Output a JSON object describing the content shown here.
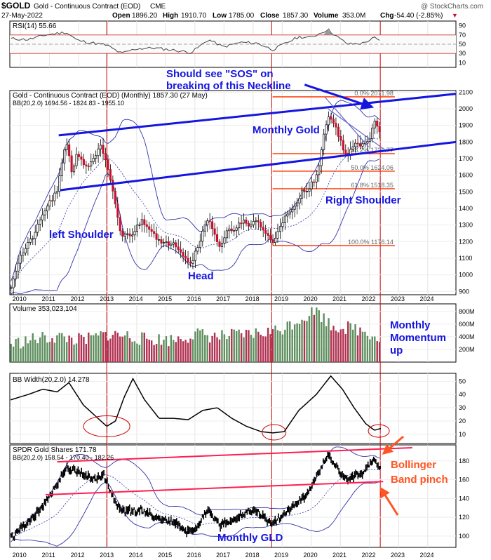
{
  "header": {
    "ticker": "$GOLD",
    "name": "Gold - Continuous Contract (EOD)",
    "exchange": "CME",
    "credit": "@ StockCharts.com",
    "date": "27-May-2022",
    "open_label": "Open",
    "open": "1896.20",
    "high_label": "High",
    "high": "1910.70",
    "low_label": "Low",
    "low": "1785.00",
    "close_label": "Close",
    "close": "1857.30",
    "volume_label": "Volume",
    "volume": "353.0M",
    "chg_label": "Chg",
    "chg": "-54.40 (-2.85%)",
    "chg_arrow": "▼"
  },
  "colors": {
    "up": "#2e8b57",
    "down": "#c8102e",
    "vol_up": "#5f8f5f",
    "vol_down": "#b03050",
    "blue": "#1515e0",
    "fib": "#ff3300",
    "vline": "#cc0000",
    "pink_line": "#ff1e50",
    "orange": "#ff5522"
  },
  "x_axis": {
    "years": [
      "2010",
      "2011",
      "2012",
      "2013",
      "2014",
      "2015",
      "2016",
      "2017",
      "2018",
      "2019",
      "2020",
      "2021",
      "2022",
      "2023",
      "2024"
    ]
  },
  "panels": {
    "rsi": {
      "legend": "RSI(14) 55.66",
      "ticks": [
        "90",
        "70",
        "50",
        "30",
        "10"
      ]
    },
    "price": {
      "legend_main": "Gold - Continuous Contract (EOD) (Monthly) 1857.30 (27 May)",
      "legend_bb": "BB(20,2.0) 1694.56 - 1824.83 - 1955.10",
      "ticks": [
        "2100",
        "2000",
        "1900",
        "1800",
        "1700",
        "1600",
        "1500",
        "1400",
        "1300",
        "1200",
        "1100",
        "1000",
        "900"
      ],
      "fib_labels": [
        "0.0% 2071.98",
        "38.2% 1729.77",
        "50.0% 1624.06",
        "61.8% 1518.35",
        "100.0% 1176.14"
      ],
      "annotations": {
        "sos": "Should see \"SOS\" on",
        "neckline": "breaking of this Neckline",
        "monthly_gold": "Monthly Gold",
        "left_shoulder": "left Shoulder",
        "head": "Head",
        "right_shoulder": "Right Shoulder"
      }
    },
    "volume": {
      "legend": "Volume 353,023,104",
      "ticks": [
        "800M",
        "600M",
        "400M",
        "200M"
      ],
      "annotation_lines": [
        "Monthly",
        "Momentum",
        "up"
      ]
    },
    "bbwidth": {
      "legend": "BB Width(20,2.0) 14.278",
      "ticks": [
        "50",
        "40",
        "30",
        "20",
        "10"
      ]
    },
    "gld": {
      "legend_main": "SPDR Gold Shares 171.78",
      "legend_bb": "BB(20,2.0) 158.54 - 170.40 - 182.26",
      "ticks": [
        "180",
        "160",
        "140",
        "120",
        "100"
      ],
      "annotations": {
        "bollinger": "Bollinger",
        "band_pinch": "Band pinch",
        "monthly_gld": "Monthly GLD"
      }
    }
  },
  "chart_data": {
    "type": "candlestick",
    "period": "monthly",
    "symbol": "$GOLD",
    "x_range": [
      2009.67,
      2025.0
    ],
    "price_ylim": [
      880,
      2110
    ],
    "gold_close_anchors": [
      [
        2009.7,
        930
      ],
      [
        2010.0,
        1100
      ],
      [
        2010.5,
        1240
      ],
      [
        2010.9,
        1400
      ],
      [
        2011.3,
        1500
      ],
      [
        2011.6,
        1820
      ],
      [
        2011.8,
        1620
      ],
      [
        2012.0,
        1740
      ],
      [
        2012.3,
        1640
      ],
      [
        2012.6,
        1720
      ],
      [
        2012.8,
        1770
      ],
      [
        2013.0,
        1660
      ],
      [
        2013.3,
        1420
      ],
      [
        2013.5,
        1230
      ],
      [
        2013.9,
        1250
      ],
      [
        2014.2,
        1330
      ],
      [
        2014.5,
        1280
      ],
      [
        2014.9,
        1180
      ],
      [
        2015.3,
        1200
      ],
      [
        2015.9,
        1060
      ],
      [
        2016.0,
        1120
      ],
      [
        2016.5,
        1350
      ],
      [
        2016.9,
        1150
      ],
      [
        2017.1,
        1250
      ],
      [
        2017.7,
        1320
      ],
      [
        2017.9,
        1280
      ],
      [
        2018.1,
        1340
      ],
      [
        2018.7,
        1190
      ],
      [
        2019.0,
        1320
      ],
      [
        2019.5,
        1410
      ],
      [
        2019.7,
        1500
      ],
      [
        2019.9,
        1520
      ],
      [
        2020.2,
        1580
      ],
      [
        2020.6,
        1970
      ],
      [
        2020.9,
        1880
      ],
      [
        2021.2,
        1720
      ],
      [
        2021.5,
        1780
      ],
      [
        2021.8,
        1780
      ],
      [
        2022.0,
        1800
      ],
      [
        2022.2,
        1940
      ],
      [
        2022.4,
        1857
      ]
    ],
    "rsi_anchors": [
      [
        2009.7,
        62
      ],
      [
        2010.3,
        60
      ],
      [
        2010.9,
        70
      ],
      [
        2011.6,
        76
      ],
      [
        2012.0,
        58
      ],
      [
        2012.6,
        52
      ],
      [
        2013.0,
        48
      ],
      [
        2013.5,
        30
      ],
      [
        2014.0,
        40
      ],
      [
        2014.6,
        42
      ],
      [
        2015.2,
        38
      ],
      [
        2015.9,
        32
      ],
      [
        2016.5,
        60
      ],
      [
        2017.0,
        44
      ],
      [
        2017.6,
        54
      ],
      [
        2018.2,
        52
      ],
      [
        2018.7,
        38
      ],
      [
        2019.6,
        66
      ],
      [
        2020.0,
        64
      ],
      [
        2020.6,
        82
      ],
      [
        2021.0,
        62
      ],
      [
        2021.3,
        50
      ],
      [
        2021.8,
        52
      ],
      [
        2022.2,
        64
      ],
      [
        2022.4,
        55.66
      ]
    ],
    "volume_anchors": [
      [
        2009.7,
        260
      ],
      [
        2010.5,
        340
      ],
      [
        2011.3,
        380
      ],
      [
        2012.2,
        320
      ],
      [
        2013.0,
        420
      ],
      [
        2013.6,
        400
      ],
      [
        2014.3,
        340
      ],
      [
        2015.2,
        330
      ],
      [
        2016.1,
        420
      ],
      [
        2016.8,
        380
      ],
      [
        2017.6,
        400
      ],
      [
        2018.3,
        440
      ],
      [
        2018.9,
        480
      ],
      [
        2019.6,
        650
      ],
      [
        2020.2,
        800
      ],
      [
        2020.7,
        560
      ],
      [
        2021.3,
        520
      ],
      [
        2021.9,
        470
      ],
      [
        2022.4,
        353
      ]
    ],
    "bbwidth_anchors": [
      [
        2009.7,
        36
      ],
      [
        2010.3,
        40
      ],
      [
        2010.8,
        44
      ],
      [
        2011.3,
        42
      ],
      [
        2011.7,
        49
      ],
      [
        2012.2,
        32
      ],
      [
        2012.7,
        22
      ],
      [
        2013.0,
        16
      ],
      [
        2013.3,
        20
      ],
      [
        2013.6,
        38
      ],
      [
        2013.9,
        52
      ],
      [
        2014.3,
        36
      ],
      [
        2014.8,
        22
      ],
      [
        2015.3,
        22
      ],
      [
        2015.8,
        21
      ],
      [
        2016.3,
        28
      ],
      [
        2016.8,
        30
      ],
      [
        2017.3,
        22
      ],
      [
        2017.8,
        16
      ],
      [
        2018.3,
        12
      ],
      [
        2018.7,
        11
      ],
      [
        2019.1,
        12
      ],
      [
        2019.6,
        28
      ],
      [
        2020.2,
        40
      ],
      [
        2020.7,
        54
      ],
      [
        2021.1,
        44
      ],
      [
        2021.5,
        30
      ],
      [
        2021.9,
        18
      ],
      [
        2022.2,
        13
      ],
      [
        2022.4,
        14.278
      ]
    ],
    "gld_ylim": [
      88,
      197
    ],
    "gld_close_anchors": [
      [
        2009.7,
        98
      ],
      [
        2010.3,
        115
      ],
      [
        2010.9,
        135
      ],
      [
        2011.6,
        172
      ],
      [
        2012.0,
        168
      ],
      [
        2012.6,
        160
      ],
      [
        2012.9,
        165
      ],
      [
        2013.3,
        135
      ],
      [
        2013.6,
        126
      ],
      [
        2014.2,
        128
      ],
      [
        2014.7,
        118
      ],
      [
        2015.3,
        115
      ],
      [
        2015.9,
        103
      ],
      [
        2016.5,
        128
      ],
      [
        2016.9,
        110
      ],
      [
        2017.6,
        122
      ],
      [
        2018.1,
        128
      ],
      [
        2018.7,
        113
      ],
      [
        2019.5,
        135
      ],
      [
        2019.9,
        145
      ],
      [
        2020.6,
        186
      ],
      [
        2021.2,
        160
      ],
      [
        2021.8,
        168
      ],
      [
        2022.2,
        182
      ],
      [
        2022.4,
        171.78
      ]
    ],
    "fib_levels": [
      {
        "label": "0.0%",
        "value": 2071.98
      },
      {
        "label": "38.2%",
        "value": 1729.77
      },
      {
        "label": "50.0%",
        "value": 1624.06
      },
      {
        "label": "61.8%",
        "value": 1518.35
      },
      {
        "label": "100.0%",
        "value": 1176.14
      }
    ],
    "vertical_markers": [
      2013.0,
      2018.67,
      2022.4
    ],
    "neckline": {
      "from": [
        2011.35,
        1840
      ],
      "to": [
        2025.0,
        2090
      ]
    },
    "lower_trendline": {
      "from": [
        2011.4,
        1510
      ],
      "to": [
        2025.0,
        1800
      ]
    },
    "gld_upper_trendline": {
      "from": [
        2011.3,
        179
      ],
      "to": [
        2023.5,
        194
      ]
    },
    "gld_lower_trendline": {
      "from": [
        2010.9,
        144
      ],
      "to": [
        2022.5,
        158
      ]
    }
  }
}
